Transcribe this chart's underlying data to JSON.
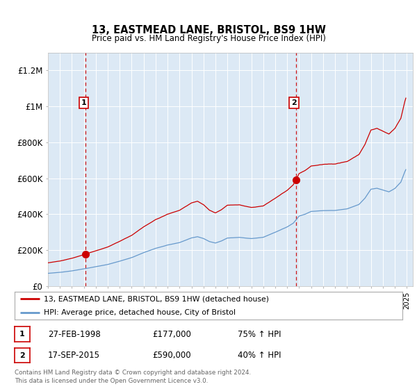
{
  "title": "13, EASTMEAD LANE, BRISTOL, BS9 1HW",
  "subtitle": "Price paid vs. HM Land Registry's House Price Index (HPI)",
  "ylim": [
    0,
    1300000
  ],
  "yticks": [
    0,
    200000,
    400000,
    600000,
    800000,
    1000000,
    1200000
  ],
  "ytick_labels": [
    "£0",
    "£200K",
    "£400K",
    "£600K",
    "£800K",
    "£1M",
    "£1.2M"
  ],
  "plot_bg": "#dce9f5",
  "red_color": "#cc0000",
  "blue_color": "#6699cc",
  "legend_label_red": "13, EASTMEAD LANE, BRISTOL, BS9 1HW (detached house)",
  "legend_label_blue": "HPI: Average price, detached house, City of Bristol",
  "sale1_date": 1998.15,
  "sale1_price": 177000,
  "sale1_label": "1",
  "sale2_date": 2015.72,
  "sale2_price": 590000,
  "sale2_label": "2",
  "footer_line1": "Contains HM Land Registry data © Crown copyright and database right 2024.",
  "footer_line2": "This data is licensed under the Open Government Licence v3.0.",
  "table_rows": [
    {
      "label": "1",
      "date": "27-FEB-1998",
      "price": "£177,000",
      "hpi": "75% ↑ HPI"
    },
    {
      "label": "2",
      "date": "17-SEP-2015",
      "price": "£590,000",
      "hpi": "40% ↑ HPI"
    }
  ]
}
